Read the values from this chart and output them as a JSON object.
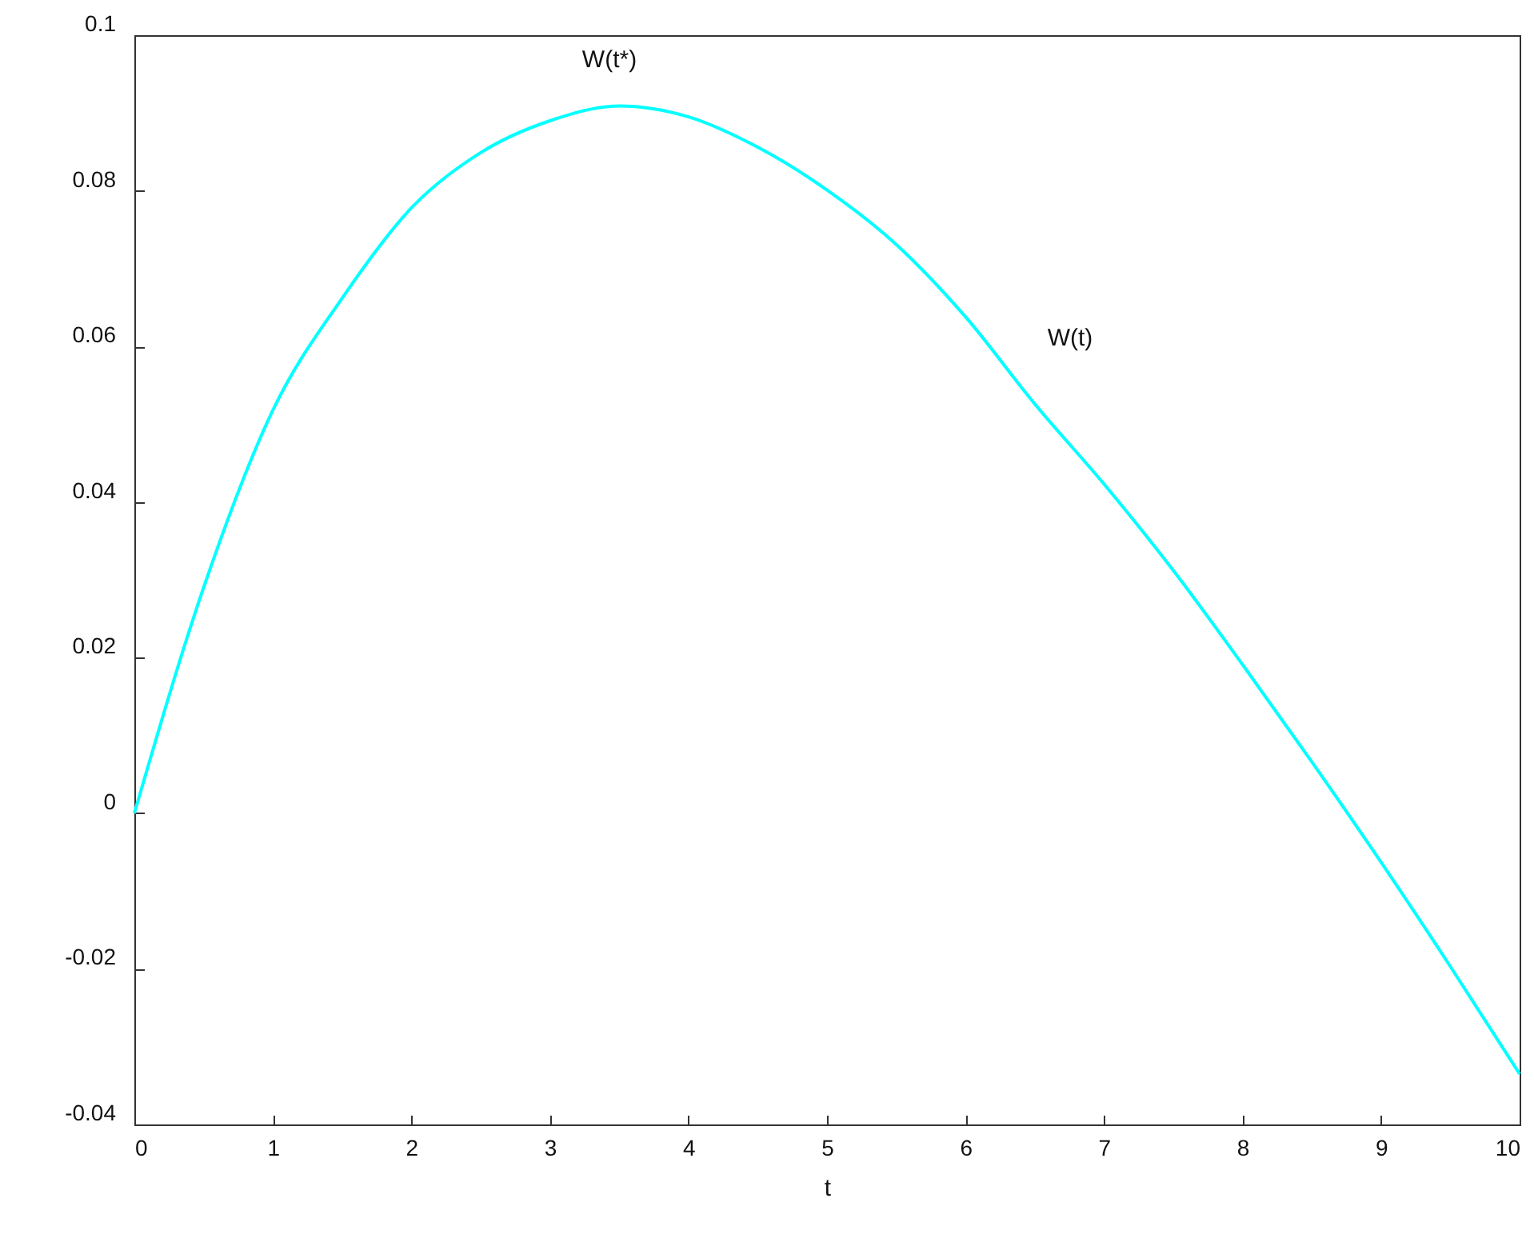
{
  "chart_data": {
    "type": "line",
    "xlabel": "t",
    "x": [
      0,
      0.5,
      1,
      1.5,
      2,
      2.5,
      3,
      3.5,
      4,
      4.5,
      5,
      5.5,
      6,
      6.5,
      7,
      7.5,
      8,
      8.5,
      9,
      9.5,
      10
    ],
    "series": [
      {
        "color": "#00ffff",
        "values": [
          0,
          0.029,
          0.0518,
          0.0662,
          0.0778,
          0.0849,
          0.089,
          0.0909,
          0.0895,
          0.0856,
          0.0801,
          0.0731,
          0.0638,
          0.0526,
          0.0423,
          0.0312,
          0.0191,
          0.0066,
          -0.0063,
          -0.0197,
          -0.0335
        ]
      }
    ],
    "xlim": [
      0,
      10
    ],
    "xticks": [
      0,
      1,
      2,
      3,
      4,
      5,
      6,
      7,
      8,
      9,
      10
    ],
    "ylim": [
      -0.04,
      0.1
    ],
    "yticks": [
      -0.04,
      -0.02,
      0,
      0.02,
      0.04,
      0.06,
      0.08,
      0.1
    ],
    "annotations": [
      "W(t*)",
      "W(t)"
    ],
    "grid": false,
    "line_style": "solid",
    "marker": "none"
  }
}
